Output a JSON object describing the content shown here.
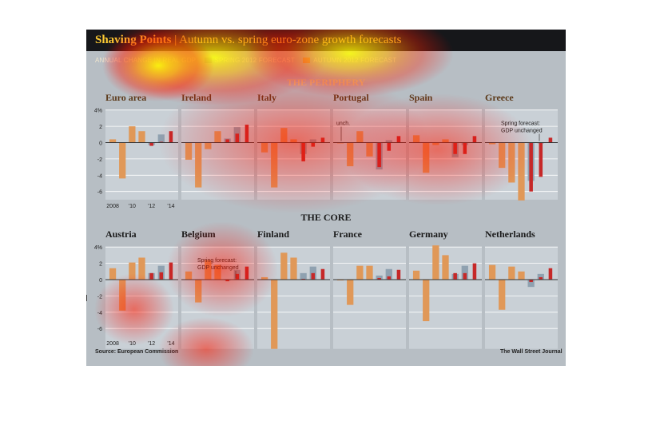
{
  "header": {
    "title_bold": "Shaving Points",
    "title_sep": " | ",
    "title_rest": "Autumn vs. spring euro-zone growth forecasts"
  },
  "legend": {
    "items": [
      {
        "label": "ANNUAL CHANGE IN REAL GDP",
        "color": ""
      },
      {
        "label": "SPRING 2012 FORECAST",
        "color": "#8fa1b0"
      },
      {
        "label": "AUTUMN 2012 FORECAST",
        "color": "#e09858"
      }
    ]
  },
  "sections": {
    "periphery": "THE PERIPHERY",
    "core": "THE CORE"
  },
  "footer": {
    "source": "Source: European Commission",
    "credit": "The Wall Street Journal"
  },
  "colors": {
    "historical": "#e09858",
    "spring": "#8fa1b0",
    "autumn": "#c62828",
    "panel_bg": "#c9d0d6",
    "grid": "#ffffff"
  },
  "chart_data": [
    {
      "type": "bar",
      "title": "Euro area",
      "categories": [
        "2008",
        "2009",
        "2010",
        "2011",
        "2012",
        "2013",
        "2014"
      ],
      "series": [
        {
          "values": [
            0.4,
            -4.4,
            2.0,
            1.4,
            null,
            null,
            null
          ]
        },
        {
          "values": [
            null,
            null,
            null,
            null,
            -0.3,
            1.0,
            null
          ]
        },
        {
          "values": [
            null,
            null,
            null,
            null,
            -0.4,
            0.1,
            1.4
          ]
        }
      ],
      "ylim": [
        -7,
        4
      ],
      "yticks": [
        "4%",
        "2",
        "0",
        "-2",
        "-4",
        "-6"
      ],
      "xticks": [
        "2008",
        "'10",
        "'12",
        "'14"
      ]
    },
    {
      "type": "bar",
      "title": "Ireland",
      "categories": [
        "2008",
        "2009",
        "2010",
        "2011",
        "2012",
        "2013",
        "2014"
      ],
      "series": [
        {
          "values": [
            -2.1,
            -5.5,
            -0.8,
            1.4,
            null,
            null,
            null
          ]
        },
        {
          "values": [
            null,
            null,
            null,
            null,
            0.5,
            1.9,
            null
          ]
        },
        {
          "values": [
            null,
            null,
            null,
            null,
            0.4,
            1.1,
            2.2
          ]
        }
      ],
      "ylim": [
        -7,
        4
      ]
    },
    {
      "type": "bar",
      "title": "Italy",
      "categories": [
        "2008",
        "2009",
        "2010",
        "2011",
        "2012",
        "2013",
        "2014"
      ],
      "series": [
        {
          "values": [
            -1.2,
            -5.5,
            1.8,
            0.4,
            null,
            null,
            null
          ]
        },
        {
          "values": [
            null,
            null,
            null,
            null,
            -1.4,
            0.4,
            null
          ]
        },
        {
          "values": [
            null,
            null,
            null,
            null,
            -2.3,
            -0.5,
            0.6
          ]
        }
      ],
      "ylim": [
        -7,
        4
      ]
    },
    {
      "type": "bar",
      "title": "Portugal",
      "categories": [
        "2008",
        "2009",
        "2010",
        "2011",
        "2012",
        "2013",
        "2014"
      ],
      "series": [
        {
          "values": [
            0.0,
            -2.9,
            1.4,
            -1.7,
            null,
            null,
            null
          ]
        },
        {
          "values": [
            null,
            null,
            null,
            null,
            -3.3,
            0.3,
            null
          ]
        },
        {
          "values": [
            null,
            null,
            null,
            null,
            -3.0,
            -1.0,
            0.8
          ]
        }
      ],
      "ylim": [
        -7,
        4
      ],
      "annotation": "unch."
    },
    {
      "type": "bar",
      "title": "Spain",
      "categories": [
        "2008",
        "2009",
        "2010",
        "2011",
        "2012",
        "2013",
        "2014"
      ],
      "series": [
        {
          "values": [
            0.9,
            -3.7,
            -0.3,
            0.4,
            null,
            null,
            null
          ]
        },
        {
          "values": [
            null,
            null,
            null,
            null,
            -1.8,
            -0.3,
            null
          ]
        },
        {
          "values": [
            null,
            null,
            null,
            null,
            -1.4,
            -1.4,
            0.8
          ]
        }
      ],
      "ylim": [
        -7,
        4
      ]
    },
    {
      "type": "bar",
      "title": "Greece",
      "categories": [
        "2008",
        "2009",
        "2010",
        "2011",
        "2012",
        "2013",
        "2014"
      ],
      "series": [
        {
          "values": [
            -0.2,
            -3.1,
            -4.9,
            -7.1,
            null,
            null,
            null
          ]
        },
        {
          "values": [
            null,
            null,
            null,
            null,
            -4.7,
            0.0,
            null
          ]
        },
        {
          "values": [
            null,
            null,
            null,
            null,
            -6.0,
            -4.2,
            0.6
          ]
        }
      ],
      "ylim": [
        -7,
        4
      ],
      "annotation": "Spring forecast: GDP unchanged"
    },
    {
      "type": "bar",
      "title": "Austria",
      "categories": [
        "2008",
        "2009",
        "2010",
        "2011",
        "2012",
        "2013",
        "2014"
      ],
      "series": [
        {
          "values": [
            1.4,
            -3.8,
            2.1,
            2.7,
            null,
            null,
            null
          ]
        },
        {
          "values": [
            null,
            null,
            null,
            null,
            0.8,
            1.7,
            null
          ]
        },
        {
          "values": [
            null,
            null,
            null,
            null,
            0.8,
            0.9,
            2.1
          ]
        }
      ],
      "ylim": [
        -8.5,
        4
      ],
      "yticks": [
        "4%",
        "2",
        "0",
        "-2",
        "-4",
        "-6"
      ],
      "xticks": [
        "2008",
        "'10",
        "'12",
        "'14"
      ]
    },
    {
      "type": "bar",
      "title": "Belgium",
      "categories": [
        "2008",
        "2009",
        "2010",
        "2011",
        "2012",
        "2013",
        "2014"
      ],
      "series": [
        {
          "values": [
            1.0,
            -2.8,
            2.4,
            1.8,
            null,
            null,
            null
          ]
        },
        {
          "values": [
            null,
            null,
            null,
            null,
            0.0,
            1.2,
            null
          ]
        },
        {
          "values": [
            null,
            null,
            null,
            null,
            -0.2,
            0.7,
            1.6
          ]
        }
      ],
      "ylim": [
        -8.5,
        4
      ],
      "annotation": "Spring forecast: GDP unchanged"
    },
    {
      "type": "bar",
      "title": "Finland",
      "categories": [
        "2008",
        "2009",
        "2010",
        "2011",
        "2012",
        "2013",
        "2014"
      ],
      "series": [
        {
          "values": [
            0.3,
            -8.5,
            3.3,
            2.7,
            null,
            null,
            null
          ]
        },
        {
          "values": [
            null,
            null,
            null,
            null,
            0.8,
            1.6,
            null
          ]
        },
        {
          "values": [
            null,
            null,
            null,
            null,
            0.1,
            0.8,
            1.3
          ]
        }
      ],
      "ylim": [
        -8.5,
        4
      ]
    },
    {
      "type": "bar",
      "title": "France",
      "categories": [
        "2008",
        "2009",
        "2010",
        "2011",
        "2012",
        "2013",
        "2014"
      ],
      "series": [
        {
          "values": [
            -0.1,
            -3.1,
            1.7,
            1.7,
            null,
            null,
            null
          ]
        },
        {
          "values": [
            null,
            null,
            null,
            null,
            0.5,
            1.3,
            null
          ]
        },
        {
          "values": [
            null,
            null,
            null,
            null,
            0.2,
            0.4,
            1.2
          ]
        }
      ],
      "ylim": [
        -8.5,
        4
      ]
    },
    {
      "type": "bar",
      "title": "Germany",
      "categories": [
        "2008",
        "2009",
        "2010",
        "2011",
        "2012",
        "2013",
        "2014"
      ],
      "series": [
        {
          "values": [
            1.1,
            -5.1,
            4.2,
            3.0,
            null,
            null,
            null
          ]
        },
        {
          "values": [
            null,
            null,
            null,
            null,
            0.7,
            1.7,
            null
          ]
        },
        {
          "values": [
            null,
            null,
            null,
            null,
            0.8,
            0.8,
            2.0
          ]
        }
      ],
      "ylim": [
        -8.5,
        4
      ]
    },
    {
      "type": "bar",
      "title": "Netherlands",
      "categories": [
        "2008",
        "2009",
        "2010",
        "2011",
        "2012",
        "2013",
        "2014"
      ],
      "series": [
        {
          "values": [
            1.8,
            -3.7,
            1.6,
            1.0,
            null,
            null,
            null
          ]
        },
        {
          "values": [
            null,
            null,
            null,
            null,
            -0.9,
            0.7,
            null
          ]
        },
        {
          "values": [
            null,
            null,
            null,
            null,
            -0.3,
            0.3,
            1.4
          ]
        }
      ],
      "ylim": [
        -8.5,
        4
      ]
    }
  ]
}
